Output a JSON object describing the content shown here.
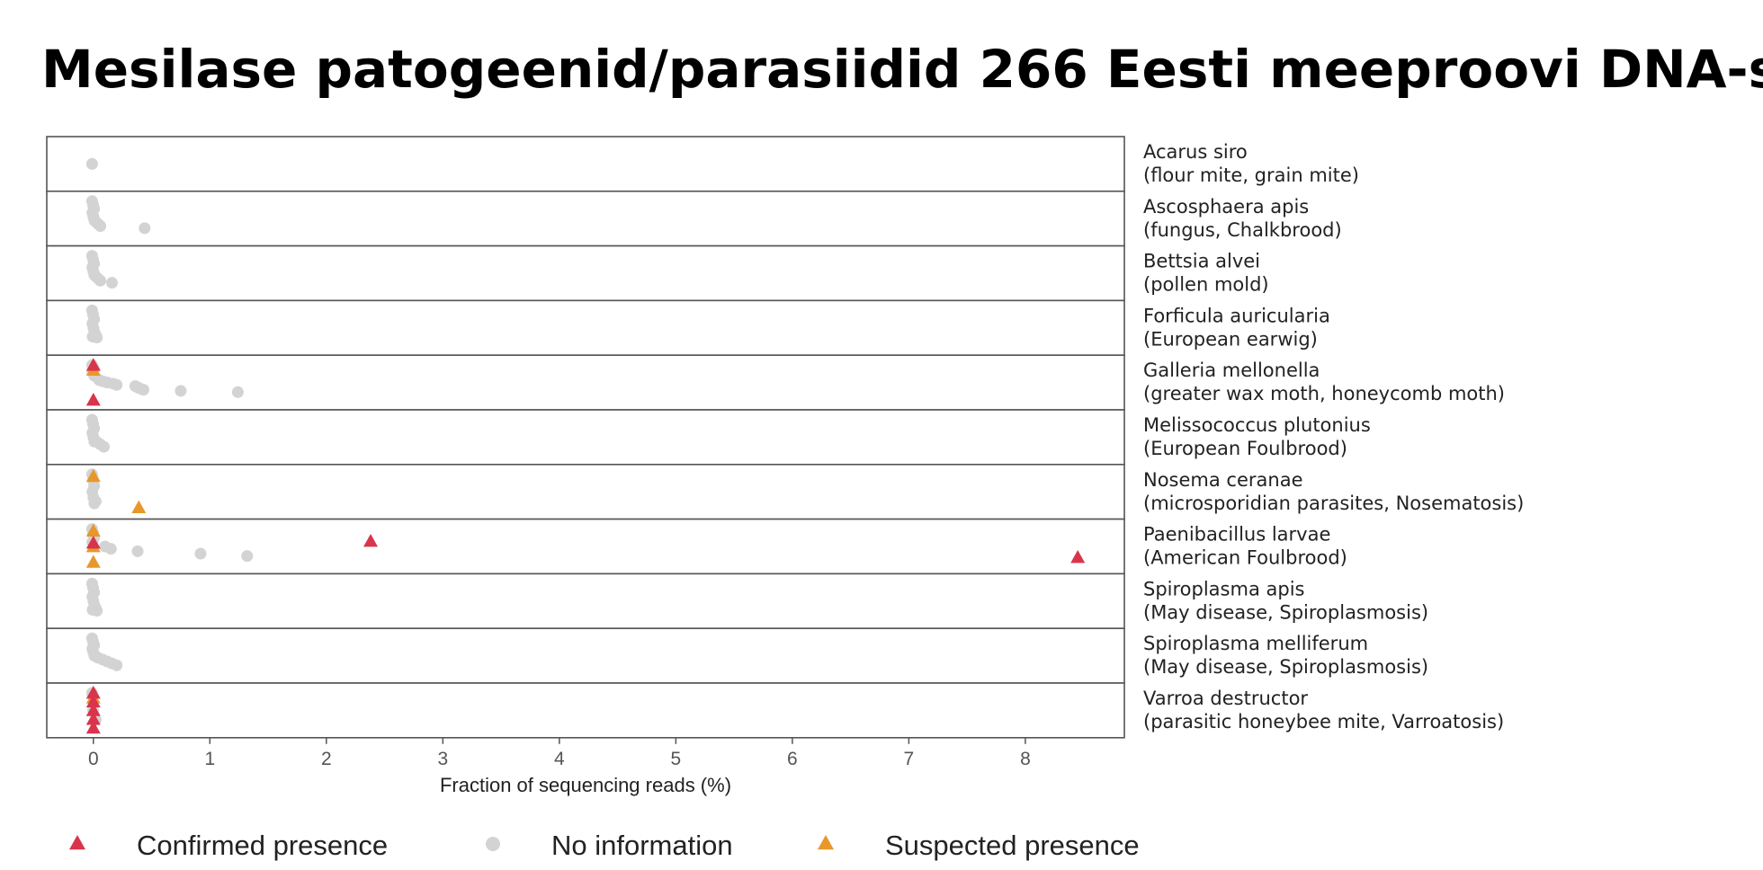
{
  "chart_data": {
    "type": "scatter",
    "title": "Mesilase patogeenid/parasiidid 266 Eesti meeproovi DNA-s",
    "xlabel": "Fraction of sequencing reads (%)",
    "xlim": [
      -0.4,
      8.85
    ],
    "xticks": [
      0,
      1,
      2,
      3,
      4,
      5,
      6,
      7,
      8
    ],
    "grid": false,
    "legend_position": "bottom",
    "legend": [
      {
        "key": "confirmed",
        "label": "Confirmed presence",
        "color": "#d9344c",
        "shape": "triangle"
      },
      {
        "key": "noinfo",
        "label": "No information",
        "color": "#d3d3d3",
        "shape": "circle"
      },
      {
        "key": "suspected",
        "label": "Suspected presence",
        "color": "#e8982a",
        "shape": "triangle"
      }
    ],
    "panels": [
      {
        "name": "Acarus siro",
        "common": "(flour mite, grain mite)",
        "noinfo": [
          0
        ],
        "confirmed": [],
        "suspected": []
      },
      {
        "name": "Ascosphaera apis",
        "common": "(fungus, Chalkbrood)",
        "noinfo": [
          0,
          0,
          0,
          0,
          0,
          0,
          0.02,
          0.04,
          0.06,
          0.44
        ],
        "confirmed": [],
        "suspected": []
      },
      {
        "name": "Bettsia alvei",
        "common": "(pollen mold)",
        "noinfo": [
          0,
          0,
          0,
          0,
          0,
          0,
          0.02,
          0.04,
          0.06,
          0.16
        ],
        "confirmed": [],
        "suspected": []
      },
      {
        "name": "Forficula auricularia",
        "common": "(European earwig)",
        "noinfo": [
          0,
          0,
          0,
          0,
          0,
          0,
          0,
          0.02,
          0.03
        ],
        "confirmed": [],
        "suspected": []
      },
      {
        "name": "Galleria mellonella",
        "common": "(greater wax moth, honeycomb moth)",
        "noinfo": [
          0,
          0,
          0,
          0,
          0,
          0,
          0.05,
          0.08,
          0.12,
          0.17,
          0.2,
          0.36,
          0.38,
          0.4,
          0.43,
          0.75,
          1.24
        ],
        "confirmed": [
          0,
          0
        ],
        "suspected": [
          0
        ]
      },
      {
        "name": "Melissococcus plutonius",
        "common": "(European Foulbrood)",
        "noinfo": [
          0,
          0,
          0,
          0,
          0,
          0,
          0.03,
          0.06,
          0.09
        ],
        "confirmed": [],
        "suspected": []
      },
      {
        "name": "Nosema ceranae",
        "common": "(microsporidian parasites, Nosematosis)",
        "noinfo": [
          0,
          0,
          0,
          0,
          0,
          0,
          0.02
        ],
        "confirmed": [],
        "suspected": [
          0,
          0.39
        ]
      },
      {
        "name": "Paenibacillus larvae",
        "common": "(American Foulbrood)",
        "noinfo": [
          0,
          0,
          0,
          0,
          0.1,
          0.15,
          0.38,
          0.92,
          1.32
        ],
        "confirmed": [
          0,
          2.38,
          8.45
        ],
        "suspected": [
          0,
          0,
          0
        ]
      },
      {
        "name": "Spiroplasma apis",
        "common": "(May disease, Spiroplasmosis)",
        "noinfo": [
          0,
          0,
          0,
          0,
          0,
          0,
          0,
          0.02,
          0.03
        ],
        "confirmed": [],
        "suspected": []
      },
      {
        "name": "Spiroplasma melliferum",
        "common": "(May disease, Spiroplasmosis)",
        "noinfo": [
          0,
          0,
          0,
          0,
          0,
          0,
          0.04,
          0.08,
          0.12,
          0.16,
          0.2
        ],
        "confirmed": [],
        "suspected": []
      },
      {
        "name": "Varroa destructor",
        "common": "(parasitic honeybee mite, Varroatosis)",
        "noinfo": [
          0,
          0,
          0.02
        ],
        "confirmed": [
          0,
          0,
          0,
          0,
          0
        ],
        "suspected": [
          0
        ]
      }
    ]
  }
}
